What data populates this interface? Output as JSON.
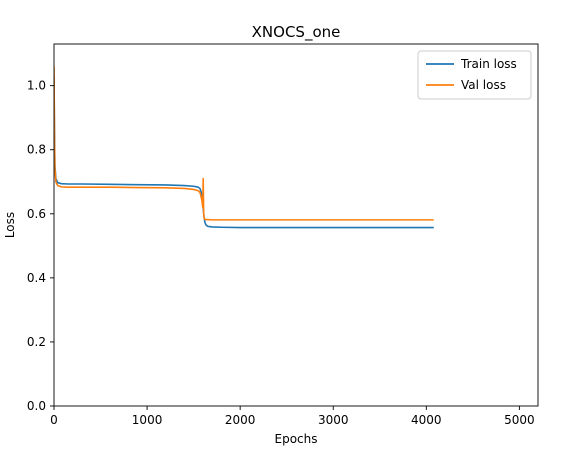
{
  "chart_data": {
    "type": "line",
    "title": "XNOCS_one",
    "xlabel": "Epochs",
    "ylabel": "Loss",
    "xlim": [
      0,
      5200
    ],
    "ylim": [
      0.0,
      1.13
    ],
    "xticks": [
      0,
      1000,
      2000,
      3000,
      4000,
      5000
    ],
    "yticks": [
      0.0,
      0.2,
      0.4,
      0.6,
      0.8,
      1.0
    ],
    "xtick_labels": [
      "0",
      "1000",
      "2000",
      "3000",
      "4000",
      "5000"
    ],
    "ytick_labels": [
      "0.0",
      "0.2",
      "0.4",
      "0.6",
      "0.8",
      "1.0"
    ],
    "grid": false,
    "legend_position": "top-right",
    "series": [
      {
        "name": "Train loss",
        "color": "#1f77b4",
        "x": [
          0,
          5,
          10,
          20,
          40,
          80,
          150,
          300,
          600,
          900,
          1200,
          1400,
          1500,
          1550,
          1570,
          1590,
          1600,
          1610,
          1620,
          1630,
          1650,
          1700,
          1800,
          2000,
          2500,
          3000,
          3500,
          4000,
          4080
        ],
        "y": [
          1.03,
          0.86,
          0.75,
          0.71,
          0.697,
          0.694,
          0.693,
          0.693,
          0.692,
          0.691,
          0.69,
          0.688,
          0.686,
          0.683,
          0.678,
          0.66,
          0.63,
          0.595,
          0.575,
          0.566,
          0.561,
          0.559,
          0.558,
          0.557,
          0.557,
          0.557,
          0.557,
          0.557,
          0.557
        ]
      },
      {
        "name": "Val loss",
        "color": "#ff7f0e",
        "x": [
          0,
          5,
          10,
          20,
          40,
          80,
          150,
          300,
          600,
          900,
          1200,
          1400,
          1500,
          1550,
          1570,
          1590,
          1598,
          1603,
          1608,
          1615,
          1625,
          1650,
          1700,
          1800,
          2000,
          2500,
          3000,
          3500,
          4000,
          4080
        ],
        "y": [
          1.06,
          0.83,
          0.74,
          0.7,
          0.688,
          0.684,
          0.683,
          0.683,
          0.683,
          0.682,
          0.681,
          0.679,
          0.676,
          0.672,
          0.666,
          0.64,
          0.62,
          0.71,
          0.6,
          0.585,
          0.582,
          0.582,
          0.581,
          0.581,
          0.581,
          0.581,
          0.581,
          0.581,
          0.581,
          0.581
        ]
      }
    ]
  }
}
